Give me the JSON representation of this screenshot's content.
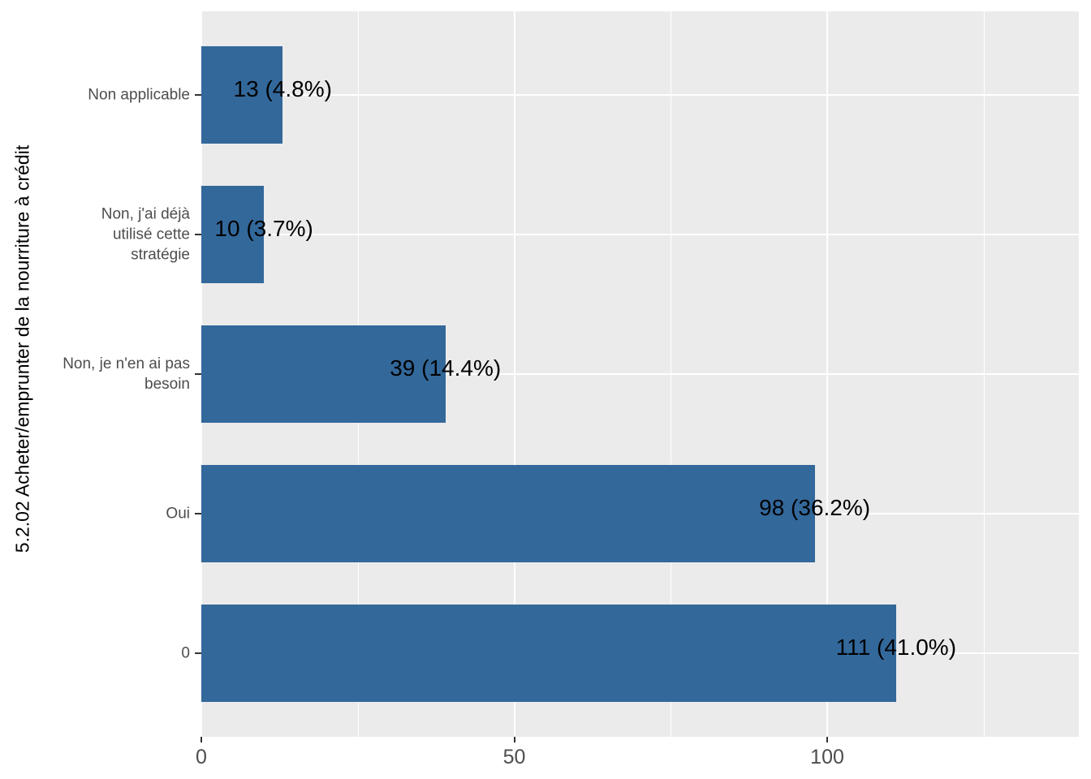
{
  "chart_data": {
    "type": "bar",
    "orientation": "horizontal",
    "title": "",
    "xlabel": "",
    "ylabel": "5.2.02 Acheter/emprunter de la nourriture à crédit",
    "categories": [
      "Non applicable",
      "Non, j'ai déjà utilisé cette stratégie",
      "Non, je n'en ai pas besoin",
      "Oui",
      "0"
    ],
    "category_label_lines": [
      [
        "Non applicable"
      ],
      [
        "Non, j'ai déjà",
        "utilisé cette",
        "stratégie"
      ],
      [
        "Non, je n'en ai pas",
        "besoin"
      ],
      [
        "Oui"
      ],
      [
        "0"
      ]
    ],
    "values": [
      13,
      10,
      39,
      98,
      111
    ],
    "percentages": [
      4.8,
      3.7,
      14.4,
      36.2,
      41.0
    ],
    "bar_labels": [
      "13 (4.8%)",
      "10 (3.7%)",
      "39 (14.4%)",
      "98 (36.2%)",
      "111 (41.0%)"
    ],
    "x_ticks": [
      0,
      50,
      100
    ],
    "x_tick_labels": [
      "0",
      "50",
      "100"
    ],
    "x_minor_ticks": [
      25,
      75,
      125
    ],
    "xlim": [
      0,
      140.2
    ],
    "grid": true,
    "legend": false,
    "colors": {
      "bar_fill": "#33689B",
      "panel_background": "#EBEBEB",
      "gridline": "#FFFFFF",
      "axis_text": "#4D4D4D",
      "tick_mark": "#333333",
      "bar_label": "#000000",
      "axis_title": "#000000",
      "page_background": "#FFFFFF"
    }
  }
}
